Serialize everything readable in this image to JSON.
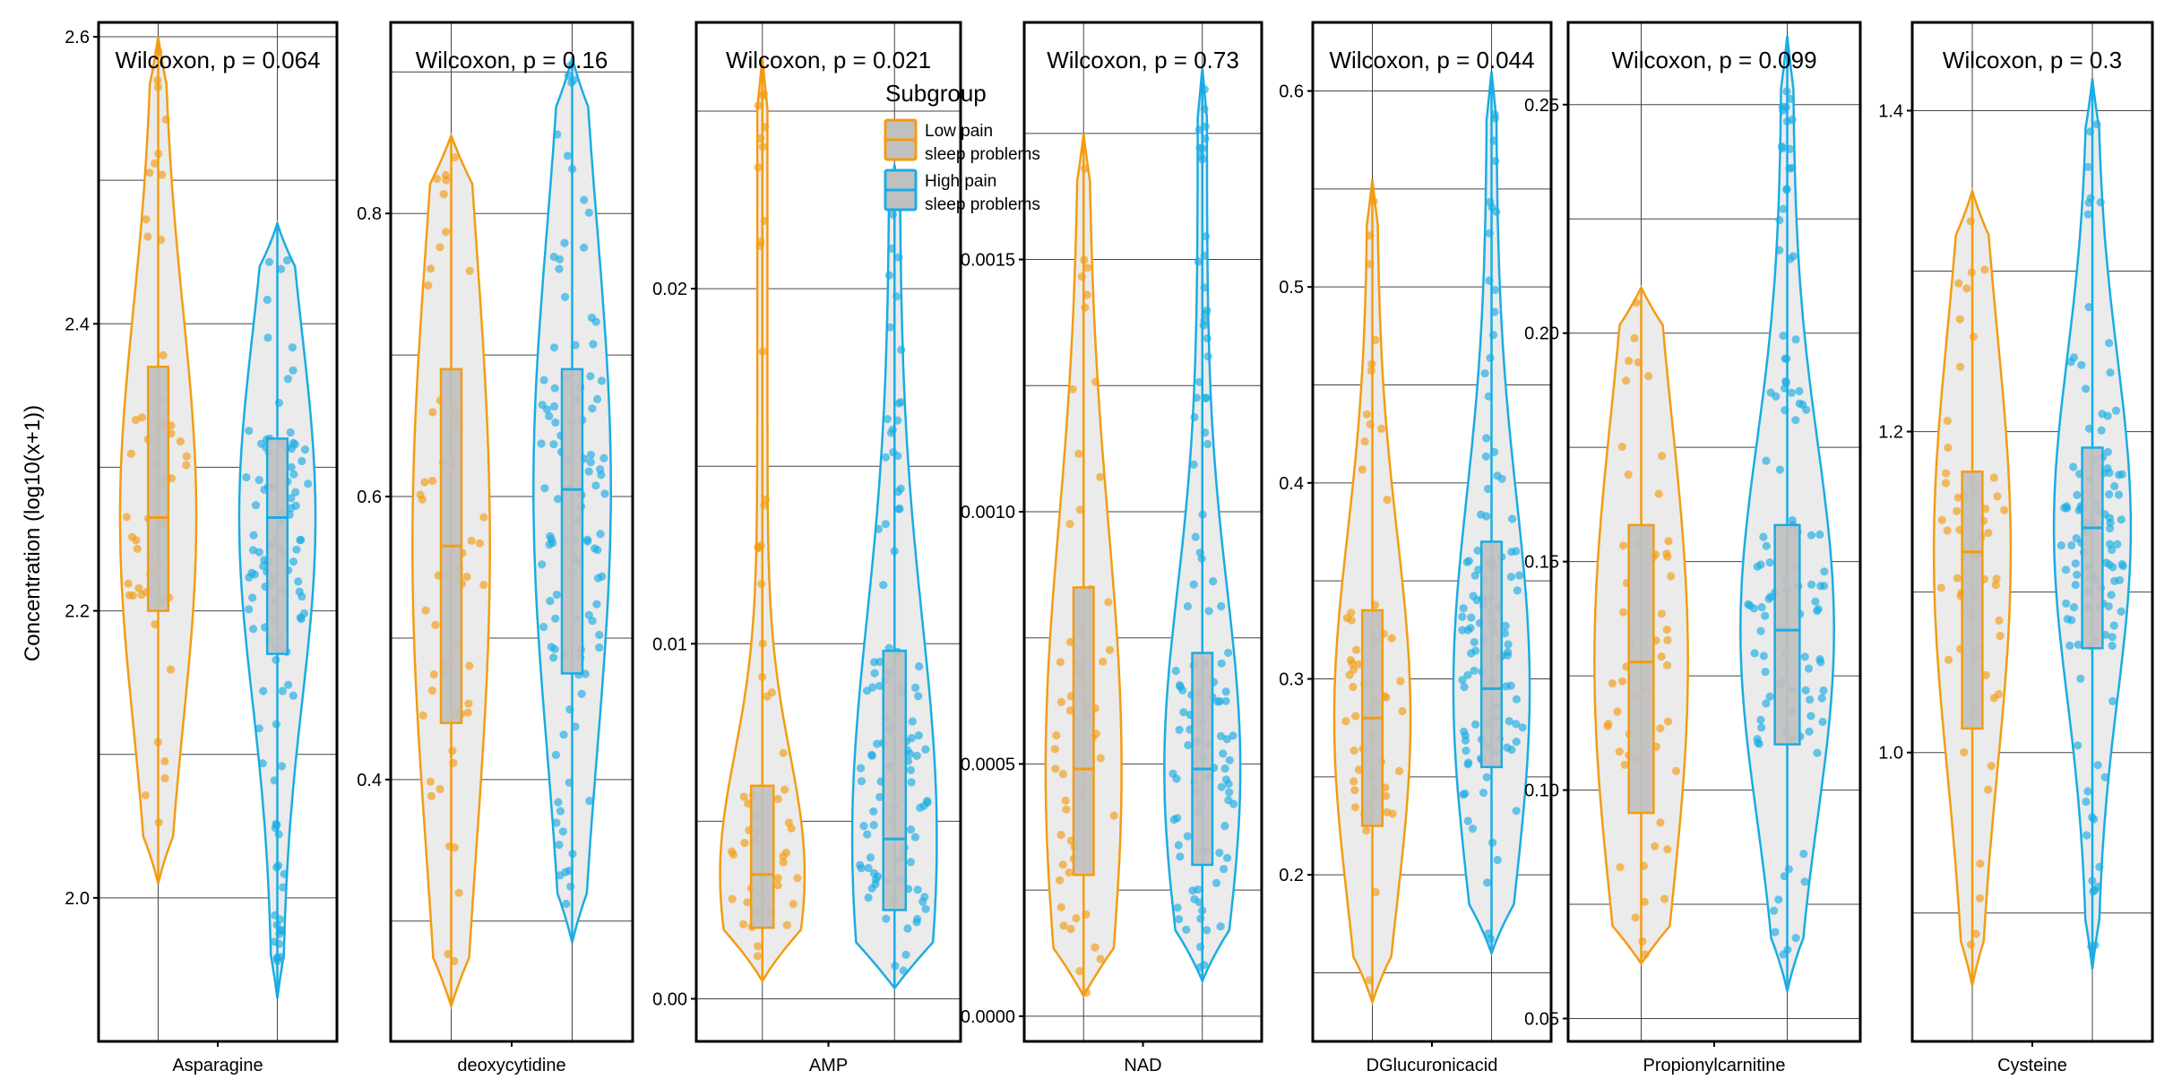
{
  "figure": {
    "ylabel": "Concentration (log10(x+1))",
    "legend": {
      "title": "Subgroup",
      "placement": "top-center",
      "items": [
        {
          "line1": "Low pain",
          "line2": "sleep problems",
          "color": "#F39C12"
        },
        {
          "line1": "High pain",
          "line2": "sleep problems",
          "color": "#1AACE3"
        }
      ]
    },
    "box_fill": "#C0C0C0",
    "violin_fill": "#EBEBEB"
  },
  "chart_data": [
    {
      "type": "violin",
      "metabolite": "Asparagine",
      "test_label": "Wilcoxon, p = 0.064",
      "ylim": [
        1.9,
        2.61
      ],
      "yticks": [
        2.0,
        2.2,
        2.4,
        2.6
      ],
      "ytick_labels": [
        "2.0",
        "2.2",
        "2.4",
        "2.6"
      ],
      "groups": [
        {
          "name": "Low pain sleep problems",
          "min": 2.01,
          "q1": 2.2,
          "median": 2.265,
          "q3": 2.37,
          "max": 2.6
        },
        {
          "name": "High pain sleep problems",
          "min": 1.93,
          "q1": 2.17,
          "median": 2.265,
          "q3": 2.32,
          "max": 2.47
        }
      ]
    },
    {
      "type": "violin",
      "metabolite": "deoxycytidine",
      "test_label": "Wilcoxon, p = 0.16",
      "ylim": [
        0.215,
        0.935
      ],
      "yticks": [
        0.4,
        0.6,
        0.8
      ],
      "ytick_labels": [
        "0.4",
        "0.6",
        "0.8"
      ],
      "groups": [
        {
          "name": "Low pain sleep problems",
          "min": 0.24,
          "q1": 0.44,
          "median": 0.565,
          "q3": 0.69,
          "max": 0.855
        },
        {
          "name": "High pain sleep problems",
          "min": 0.285,
          "q1": 0.475,
          "median": 0.605,
          "q3": 0.69,
          "max": 0.91
        }
      ]
    },
    {
      "type": "violin",
      "metabolite": "AMP",
      "test_label": "Wilcoxon, p = 0.021",
      "ylim": [
        -0.0012,
        0.0275
      ],
      "yticks": [
        0.0,
        0.01,
        0.02
      ],
      "ytick_labels": [
        "0.00",
        "0.01",
        "0.02"
      ],
      "groups": [
        {
          "name": "Low pain sleep problems",
          "min": 0.0005,
          "q1": 0.002,
          "median": 0.0035,
          "q3": 0.006,
          "max": 0.0265
        },
        {
          "name": "High pain sleep problems",
          "min": 0.0003,
          "q1": 0.0025,
          "median": 0.0045,
          "q3": 0.0098,
          "max": 0.0235
        }
      ]
    },
    {
      "type": "violin",
      "metabolite": "NAD",
      "test_label": "Wilcoxon, p = 0.73",
      "ylim": [
        -5e-05,
        0.00197
      ],
      "yticks": [
        0.0,
        0.0005,
        0.001,
        0.0015
      ],
      "ytick_labels": [
        "0.0000",
        "0.0005",
        "0.0010",
        "0.0015"
      ],
      "groups": [
        {
          "name": "Low pain sleep problems",
          "min": 4e-05,
          "q1": 0.00028,
          "median": 0.00049,
          "q3": 0.00085,
          "max": 0.00175
        },
        {
          "name": "High pain sleep problems",
          "min": 7e-05,
          "q1": 0.0003,
          "median": 0.00049,
          "q3": 0.00072,
          "max": 0.00188
        }
      ]
    },
    {
      "type": "violin",
      "metabolite": "DGlucuronicacid",
      "test_label": "Wilcoxon, p = 0.044",
      "ylim": [
        0.115,
        0.635
      ],
      "yticks": [
        0.2,
        0.3,
        0.4,
        0.5,
        0.6
      ],
      "ytick_labels": [
        "0.2",
        "0.3",
        "0.4",
        "0.5",
        "0.6"
      ],
      "groups": [
        {
          "name": "Low pain sleep problems",
          "min": 0.135,
          "q1": 0.225,
          "median": 0.28,
          "q3": 0.335,
          "max": 0.555
        },
        {
          "name": "High pain sleep problems",
          "min": 0.16,
          "q1": 0.255,
          "median": 0.295,
          "q3": 0.37,
          "max": 0.61
        }
      ]
    },
    {
      "type": "violin",
      "metabolite": "Propionylcarnitine",
      "test_label": "Wilcoxon, p = 0.099",
      "ylim": [
        0.045,
        0.268
      ],
      "yticks": [
        0.05,
        0.1,
        0.15,
        0.2,
        0.25
      ],
      "ytick_labels": [
        "0.05",
        "0.10",
        "0.15",
        "0.20",
        "0.25"
      ],
      "groups": [
        {
          "name": "Low pain sleep problems",
          "min": 0.062,
          "q1": 0.095,
          "median": 0.128,
          "q3": 0.158,
          "max": 0.21
        },
        {
          "name": "High pain sleep problems",
          "min": 0.056,
          "q1": 0.11,
          "median": 0.135,
          "q3": 0.158,
          "max": 0.265
        }
      ]
    },
    {
      "type": "violin",
      "metabolite": "Cysteine",
      "test_label": "Wilcoxon, p = 0.3",
      "ylim": [
        0.82,
        1.455
      ],
      "yticks": [
        1.0,
        1.2,
        1.4
      ],
      "ytick_labels": [
        "1.0",
        "1.2",
        "1.4"
      ],
      "groups": [
        {
          "name": "Low pain sleep problems",
          "min": 0.855,
          "q1": 1.015,
          "median": 1.125,
          "q3": 1.175,
          "max": 1.35
        },
        {
          "name": "High pain sleep problems",
          "min": 0.865,
          "q1": 1.065,
          "median": 1.14,
          "q3": 1.19,
          "max": 1.42
        }
      ]
    }
  ]
}
